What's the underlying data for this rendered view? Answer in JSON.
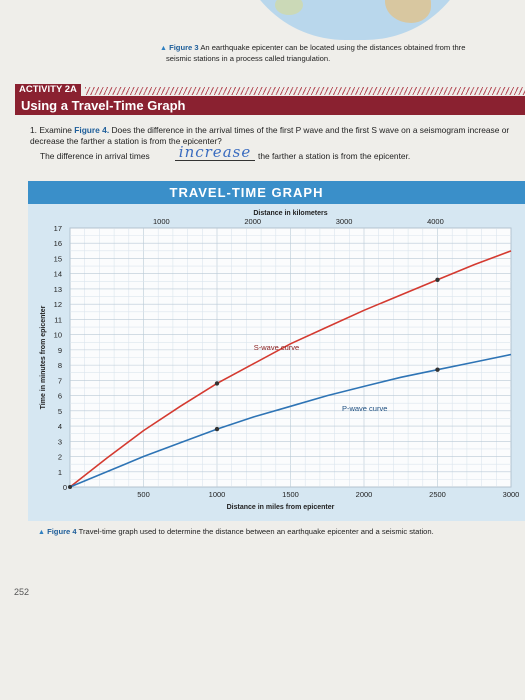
{
  "figure3": {
    "label": "Figure 3",
    "caption_line1": "An earthquake epicenter can be located using the distances obtained from thre",
    "caption_line2": "seismic stations in a process called triangulation."
  },
  "activity": {
    "tag": "ACTIVITY 2A",
    "title": "Using a Travel-Time Graph"
  },
  "question": {
    "number": "1.",
    "text_before_ref": "Examine",
    "figure_ref": "Figure 4.",
    "text_after_ref": "Does the difference in the arrival times of the first P wave and the first S wave on a seismogram increase or decrease the farther a station is from the epicenter?",
    "answer_prefix": "The difference in arrival times",
    "answer_handwritten": "increase",
    "answer_suffix": "the farther a station is from the epicenter."
  },
  "chart_data": {
    "type": "line",
    "title": "TRAVEL-TIME GRAPH",
    "top_axis_label": "Distance in kilometers",
    "top_axis_ticks": [
      1000,
      2000,
      3000,
      4000
    ],
    "xlabel": "Distance in miles from epicenter",
    "x_ticks": [
      500,
      1000,
      1500,
      2000,
      2500,
      3000
    ],
    "xlim": [
      0,
      3000
    ],
    "ylabel": "Time in minutes from epicenter",
    "y_ticks": [
      0,
      1,
      2,
      3,
      4,
      5,
      6,
      7,
      8,
      9,
      10,
      11,
      12,
      13,
      14,
      15,
      16,
      17
    ],
    "ylim": [
      0,
      17
    ],
    "grid": true,
    "series": [
      {
        "name": "S-wave curve",
        "color": "#d43a30",
        "x": [
          0,
          250,
          500,
          750,
          1000,
          1250,
          1500,
          1750,
          2000,
          2250,
          2500,
          2750,
          3000
        ],
        "y": [
          0,
          1.9,
          3.7,
          5.3,
          6.8,
          8.1,
          9.4,
          10.5,
          11.6,
          12.6,
          13.6,
          14.6,
          15.5
        ],
        "marked_points": [
          [
            1000,
            6.8
          ],
          [
            2500,
            13.6
          ]
        ]
      },
      {
        "name": "P-wave curve",
        "color": "#2e74b5",
        "x": [
          0,
          250,
          500,
          750,
          1000,
          1250,
          1500,
          1750,
          2000,
          2250,
          2500,
          2750,
          3000
        ],
        "y": [
          0,
          1.0,
          2.0,
          2.9,
          3.8,
          4.6,
          5.3,
          6.0,
          6.6,
          7.2,
          7.7,
          8.2,
          8.7
        ],
        "marked_points": [
          [
            1000,
            3.8
          ],
          [
            2500,
            7.7
          ]
        ]
      }
    ]
  },
  "figure4": {
    "label": "Figure 4",
    "caption": "Travel-time graph used to determine the distance between an earthquake epicenter and a seismic station."
  },
  "page_number": "252"
}
